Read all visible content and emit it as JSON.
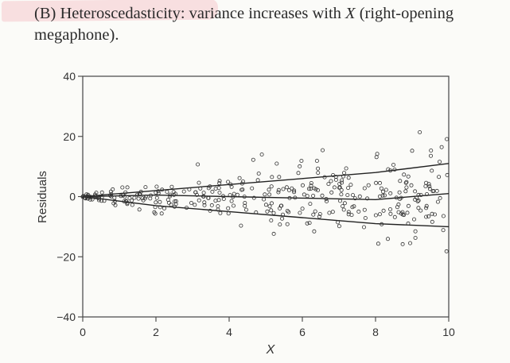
{
  "caption": {
    "part1": "(B) Heteroscedasticity: variance increases with ",
    "var": "X",
    "part2": " (right-opening megaphone)."
  },
  "chart_data": {
    "type": "scatter",
    "title": "",
    "xlabel": "X",
    "ylabel": "Residuals",
    "xlim": [
      0,
      10
    ],
    "ylim": [
      -40,
      40
    ],
    "xticks": [
      0,
      2,
      4,
      6,
      8,
      10
    ],
    "yticks": [
      -40,
      -20,
      0,
      20,
      40
    ],
    "grid": false,
    "legend": "none",
    "marker": "open-circle",
    "point_count": 360,
    "seed": 7,
    "spread": {
      "y_sd_at_x0": 0.4,
      "y_sd_slope_per_x": 0.9
    },
    "reference_lines": [
      {
        "name": "upper-envelope",
        "x": [
          0,
          2,
          4,
          6,
          8,
          10
        ],
        "y": [
          0,
          2,
          4,
          6,
          8,
          11
        ]
      },
      {
        "name": "center-line",
        "x": [
          0,
          2,
          4,
          6,
          8,
          10
        ],
        "y": [
          0,
          0.5,
          0,
          -0.5,
          -1,
          1
        ]
      },
      {
        "name": "lower-envelope",
        "x": [
          0,
          2,
          4,
          6,
          8,
          10
        ],
        "y": [
          0,
          -3,
          -5,
          -7,
          -9,
          -10
        ]
      }
    ]
  }
}
